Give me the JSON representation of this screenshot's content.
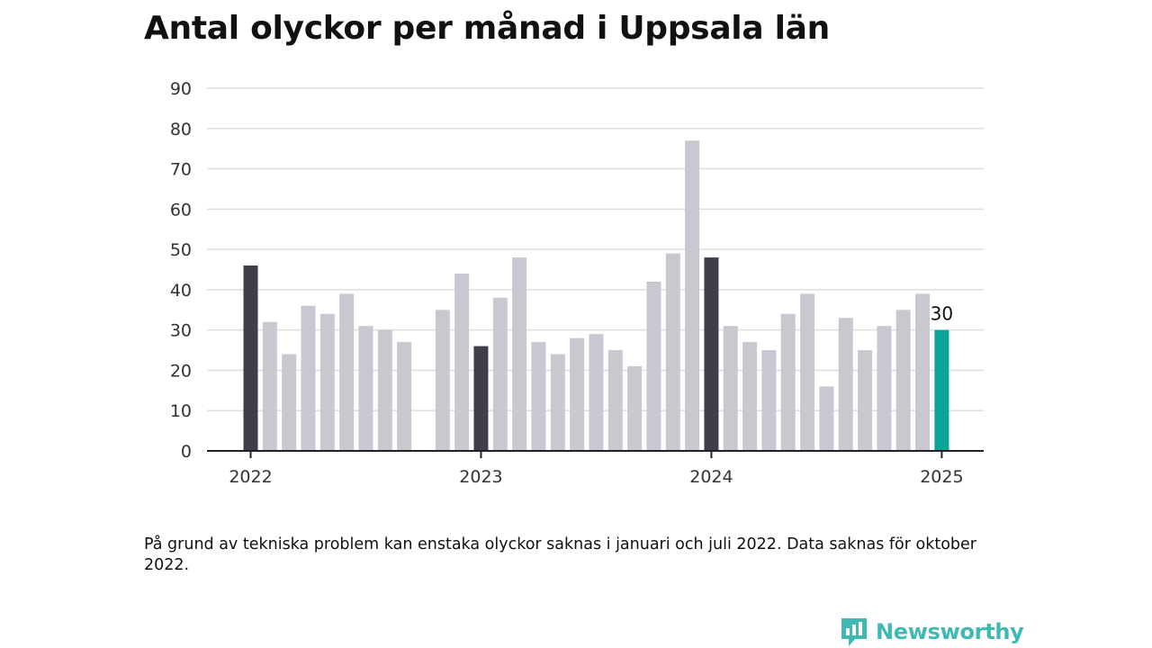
{
  "title": "Antal olyckor per månad i Uppsala län",
  "note": "På grund av tekniska problem kan enstaka olyckor saknas i januari och juli 2022. Data saknas för oktober 2022.",
  "brand": {
    "name": "Newsworthy",
    "icon": "newsworthy-logo-icon",
    "color": "#40b9b3"
  },
  "colors": {
    "bar": "#c8c8d0",
    "january": "#3f3f4c",
    "latest": "#0aa39a",
    "grid": "#dedede",
    "axis": "#222222"
  },
  "chart_data": {
    "type": "bar",
    "title": "Antal olyckor per månad i Uppsala län",
    "xlabel": "",
    "ylabel": "",
    "ylim": [
      0,
      90
    ],
    "yticks": [
      0,
      10,
      20,
      30,
      40,
      50,
      60,
      70,
      80,
      90
    ],
    "xticks": [
      "2022",
      "2023",
      "2024",
      "2025"
    ],
    "grid": true,
    "categories": [
      "2022-01",
      "2022-02",
      "2022-03",
      "2022-04",
      "2022-05",
      "2022-06",
      "2022-07",
      "2022-08",
      "2022-09",
      "2022-10",
      "2022-11",
      "2022-12",
      "2023-01",
      "2023-02",
      "2023-03",
      "2023-04",
      "2023-05",
      "2023-06",
      "2023-07",
      "2023-08",
      "2023-09",
      "2023-10",
      "2023-11",
      "2023-12",
      "2024-01",
      "2024-02",
      "2024-03",
      "2024-04",
      "2024-05",
      "2024-06",
      "2024-07",
      "2024-08",
      "2024-09",
      "2024-10",
      "2024-11",
      "2024-12",
      "2025-01"
    ],
    "values": [
      46,
      32,
      24,
      36,
      34,
      39,
      31,
      30,
      27,
      null,
      35,
      44,
      26,
      38,
      48,
      27,
      24,
      28,
      29,
      25,
      21,
      42,
      49,
      77,
      48,
      31,
      27,
      25,
      34,
      39,
      16,
      33,
      25,
      31,
      35,
      39,
      30
    ],
    "highlight_label": "30"
  }
}
